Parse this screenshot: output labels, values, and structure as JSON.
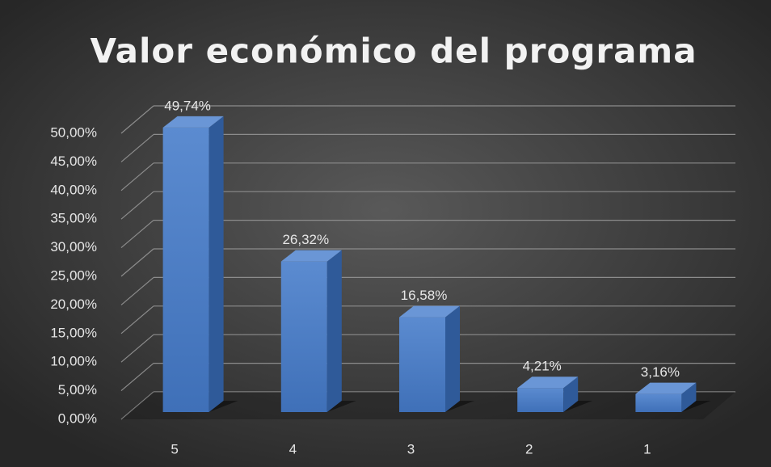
{
  "chart_data": {
    "type": "bar3d",
    "title": "Valor económico del programa",
    "categories": [
      "5",
      "4",
      "3",
      "2",
      "1"
    ],
    "values": [
      49.74,
      26.32,
      16.58,
      4.21,
      3.16
    ],
    "value_labels": [
      "49,74%",
      "26,32%",
      "16,58%",
      "4,21%",
      "3,16%"
    ],
    "color": "#4a7cc4",
    "ylim": [
      0,
      50
    ],
    "yticks": [
      {
        "value": 0,
        "label": "0,00%"
      },
      {
        "value": 5,
        "label": "5,00%"
      },
      {
        "value": 10,
        "label": "10,00%"
      },
      {
        "value": 15,
        "label": "15,00%"
      },
      {
        "value": 20,
        "label": "20,00%"
      },
      {
        "value": 25,
        "label": "25,00%"
      },
      {
        "value": 30,
        "label": "30,00%"
      },
      {
        "value": 35,
        "label": "35,00%"
      },
      {
        "value": 40,
        "label": "40,00%"
      },
      {
        "value": 45,
        "label": "45,00%"
      },
      {
        "value": 50,
        "label": "50,00%"
      }
    ],
    "grid": true
  }
}
